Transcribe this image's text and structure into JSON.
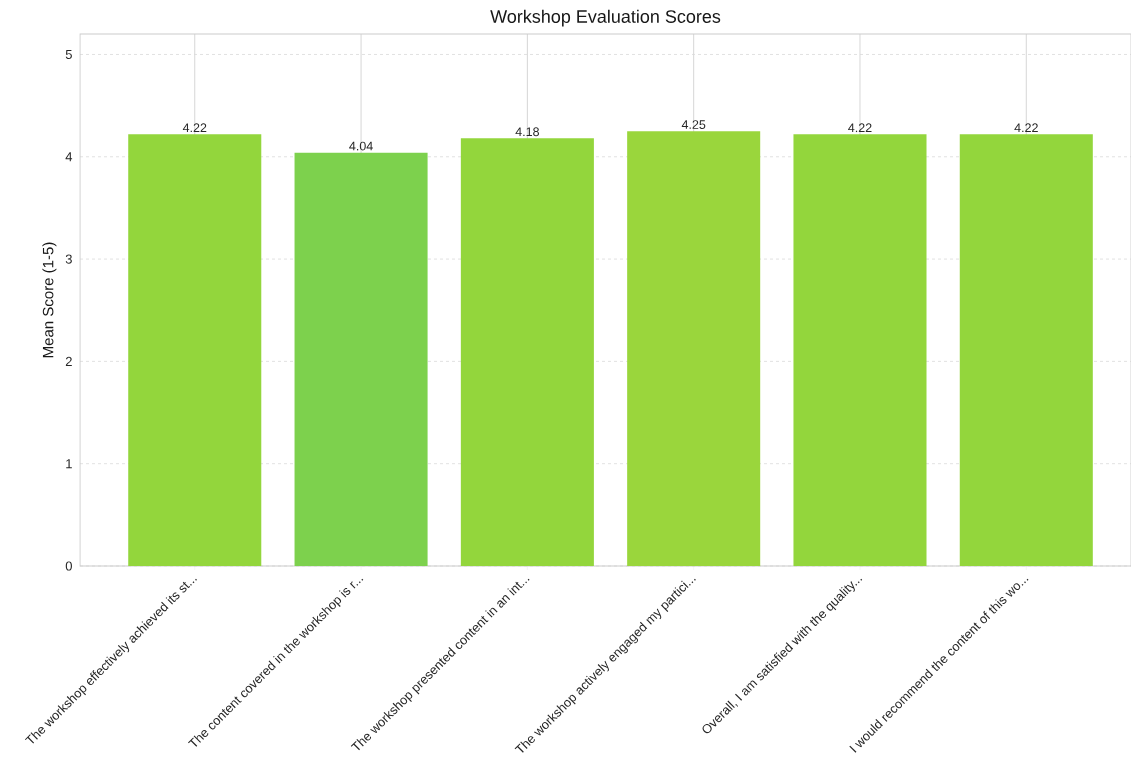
{
  "chart_data": {
    "type": "bar",
    "title": "Workshop Evaluation Scores",
    "ylabel": "Mean Score (1-5)",
    "categories": [
      "The workshop effectively achieved its st...",
      "The content covered in the workshop is r...",
      "The workshop presented content in an int...",
      "The workshop actively engaged my partici...",
      "Overall, I am satisfied with the quality...",
      "I would recommend the content of this wo..."
    ],
    "values": [
      4.22,
      4.04,
      4.18,
      4.25,
      4.22,
      4.22
    ],
    "colors": [
      "#93d63c",
      "#7dd14d",
      "#93d63c",
      "#9ad63c",
      "#93d63c",
      "#93d63c"
    ],
    "ylim": [
      0,
      5.2
    ],
    "yticks": [
      0,
      1,
      2,
      3,
      4,
      5
    ],
    "grid": true,
    "data_labels": true
  }
}
